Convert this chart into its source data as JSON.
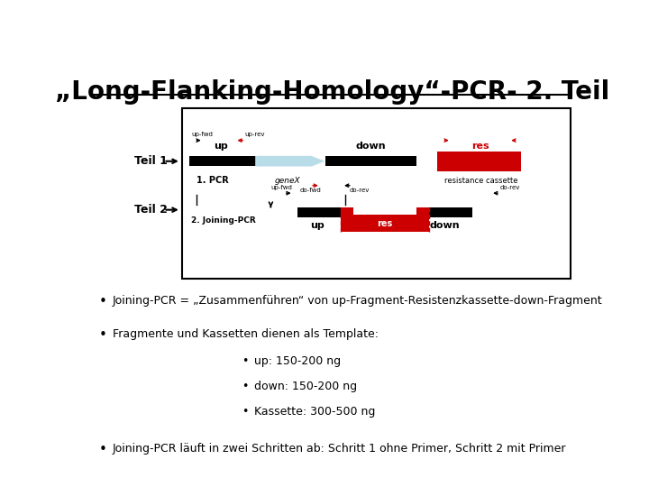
{
  "title": "„Long-Flanking-Homology“-PCR- 2. Teil",
  "title_fontsize": 20,
  "title_fontweight": "bold",
  "background_color": "#ffffff",
  "bullet_points": [
    "Joining-PCR = „Zusammenführen“ von up-Fragment-Resistenzkassette-down-Fragment",
    "Fragmente und Kassetten dienen als Template:"
  ],
  "sub_bullets": [
    "up: 150-200 ng",
    "down: 150-200 ng",
    "Kassette: 300-500 ng"
  ],
  "last_bullet": "Joining-PCR läuft in zwei Schritten ab: Schritt 1 ohne Primer, Schritt 2 mit Primer",
  "red_color": "#cc0000",
  "black_color": "#000000",
  "light_blue_color": "#b8dce8"
}
